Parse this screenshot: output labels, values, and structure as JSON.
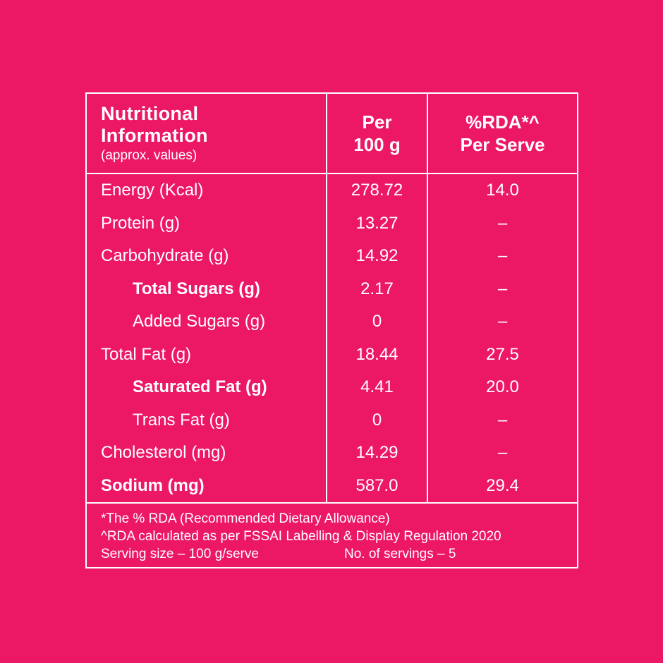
{
  "colors": {
    "background": "#EC1765",
    "text": "#FFFFFF"
  },
  "table": {
    "header": {
      "title": "Nutritional Information",
      "subtitle": "(approx. values)",
      "per_100g": "Per\n100 g",
      "rda_per_serve": "%RDA*^\nPer Serve"
    },
    "rows": [
      {
        "label": "Energy (Kcal)",
        "per_100g": "278.72",
        "rda_per_serve": "14.0"
      },
      {
        "label": "Protein (g)",
        "per_100g": "13.27",
        "rda_per_serve": "–"
      },
      {
        "label": "Carbohydrate (g)",
        "per_100g": "14.92",
        "rda_per_serve": "–"
      },
      {
        "label": "Total Sugars (g)",
        "per_100g": "2.17",
        "rda_per_serve": "–"
      },
      {
        "label": "Added Sugars (g)",
        "per_100g": "0",
        "rda_per_serve": "–"
      },
      {
        "label": "Total Fat (g)",
        "per_100g": "18.44",
        "rda_per_serve": "27.5"
      },
      {
        "label": "Saturated Fat (g)",
        "per_100g": "4.41",
        "rda_per_serve": "20.0"
      },
      {
        "label": "Trans Fat (g)",
        "per_100g": "0",
        "rda_per_serve": "–"
      },
      {
        "label": "Cholesterol (mg)",
        "per_100g": "14.29",
        "rda_per_serve": "–"
      },
      {
        "label": "Sodium (mg)",
        "per_100g": "587.0",
        "rda_per_serve": "29.4"
      }
    ],
    "footnotes": {
      "line1": "*The % RDA (Recommended Dietary Allowance)",
      "line2": "^RDA calculated as per FSSAI Labelling & Display Regulation 2020",
      "serving_size": "Serving size – 100 g/serve",
      "servings": "No. of servings – 5"
    }
  }
}
